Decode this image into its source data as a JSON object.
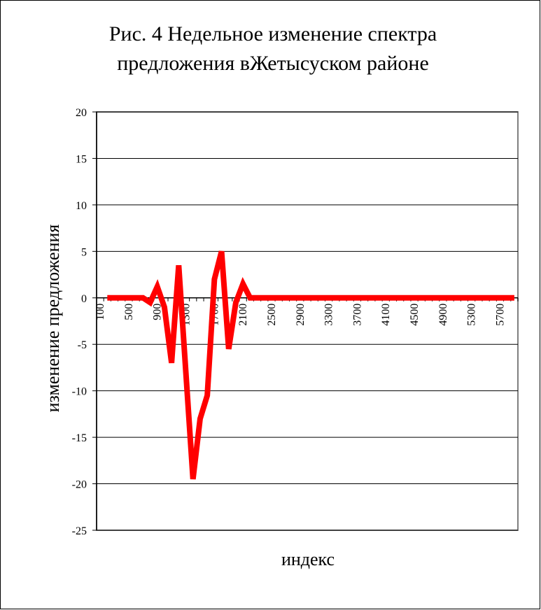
{
  "chart_data": {
    "type": "line",
    "title": [
      "Рис. 4 Недельное изменение спектра",
      "предложения вЖетысуском районе"
    ],
    "x_label": "индекс",
    "y_label": "изменение предложения",
    "categories": [
      "100",
      null,
      null,
      null,
      "500",
      null,
      null,
      null,
      "900",
      null,
      null,
      null,
      "1300",
      null,
      null,
      null,
      "1700",
      null,
      null,
      null,
      "2100",
      null,
      null,
      null,
      "2500",
      null,
      null,
      null,
      "2900",
      null,
      null,
      null,
      "3300",
      null,
      null,
      null,
      "3700",
      null,
      null,
      null,
      "4100",
      null,
      null,
      null,
      "4500",
      null,
      null,
      null,
      "4900",
      null,
      null,
      null,
      "5300",
      null,
      null,
      null,
      "5700",
      null,
      null
    ],
    "series": [
      {
        "name": "изменение предложения",
        "color": "#ff0000",
        "values": [
          null,
          0,
          0,
          0,
          0,
          0,
          0,
          -0.5,
          1.2,
          -1,
          -7,
          3.5,
          -8,
          -19.5,
          -13,
          -10.5,
          2,
          5,
          -5.5,
          -0.5,
          1.5,
          0,
          0,
          0,
          0,
          0,
          0,
          0,
          0,
          0,
          0,
          0,
          0,
          0,
          0,
          0,
          0,
          0,
          0,
          0,
          0,
          0,
          0,
          0,
          0,
          0,
          0,
          0,
          0,
          0,
          0,
          0,
          0,
          0,
          0,
          0,
          0,
          0,
          0
        ]
      }
    ],
    "ylim": [
      -25,
      20
    ],
    "yticks": [
      -25,
      -20,
      -15,
      -10,
      -5,
      0,
      5,
      10,
      15,
      20
    ],
    "grid": true
  }
}
